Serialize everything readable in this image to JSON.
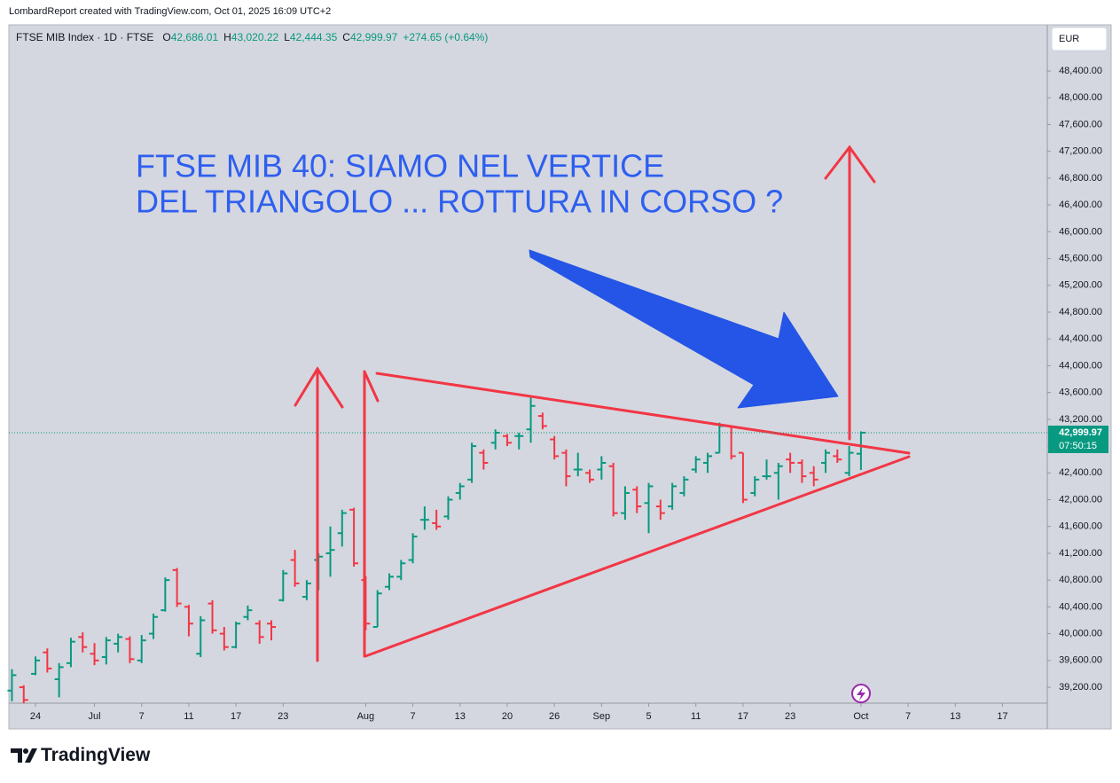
{
  "credit": "LombardReport created with TradingView.com, Oct 01, 2025 16:09 UTC+2",
  "logo": "TradingView",
  "chart_data": {
    "type": "ohlc",
    "title": "FTSE MIB Index · 1D · FTSE",
    "header_values": [
      {
        "label": "O",
        "text": "42,686.01"
      },
      {
        "label": "H",
        "text": "43,020.22"
      },
      {
        "label": "L",
        "text": "42,444.35"
      },
      {
        "label": "C",
        "text": "42,999.97"
      }
    ],
    "change": "+274.65 (+0.64%)",
    "currency": "EUR",
    "last_price_label": "42,999.97",
    "countdown": "07:50:15",
    "annotation": [
      "FTSE MIB 40: SIAMO NEL VERTICE",
      "DEL TRIANGOLO ... ROTTURA IN CORSO ?"
    ],
    "up_color": "#089981",
    "down_color": "#f23645",
    "x": [
      -2,
      -1,
      0,
      1,
      2,
      3,
      4,
      5,
      6,
      7,
      8,
      9,
      10,
      11,
      12,
      13,
      14,
      15,
      16,
      17,
      18,
      19,
      20,
      21,
      22,
      23,
      24,
      25,
      26,
      27,
      28,
      29,
      30,
      31,
      32,
      33,
      34,
      35,
      36,
      37,
      38,
      39,
      40,
      41,
      42,
      43,
      44,
      45,
      46,
      47,
      48,
      49,
      50,
      51,
      52,
      53,
      54,
      55,
      56,
      57,
      58,
      59,
      60,
      61,
      62,
      63,
      64,
      65,
      66,
      67,
      68,
      69,
      70
    ],
    "open": [
      39150,
      39200,
      39400,
      39720,
      39320,
      39560,
      39950,
      39700,
      39650,
      39850,
      39920,
      39600,
      40000,
      40350,
      40950,
      40400,
      39700,
      40450,
      40000,
      39800,
      40250,
      40150,
      40150,
      40500,
      41100,
      40550,
      41100,
      41200,
      41500,
      41850,
      40800,
      40100,
      40700,
      40850,
      41100,
      41700,
      41650,
      41750,
      42100,
      42300,
      42700,
      42850,
      42950,
      42950,
      43050,
      43250,
      42900,
      42700,
      42450,
      42400,
      42450,
      42500,
      41800,
      42150,
      41950,
      41900,
      41900,
      42100,
      42450,
      42550,
      42700,
      43100,
      42700,
      42100,
      42350,
      42400,
      42600,
      42550,
      42400,
      42550,
      42650,
      42400,
      42686.01
    ],
    "high": [
      39470,
      39230,
      39660,
      39780,
      39560,
      39940,
      40020,
      39860,
      39950,
      40000,
      39960,
      39980,
      40300,
      40840,
      40980,
      40430,
      40260,
      40500,
      40100,
      40180,
      40420,
      40200,
      40200,
      40950,
      41250,
      40800,
      41200,
      41600,
      41850,
      41880,
      40860,
      40650,
      40900,
      41100,
      41500,
      41900,
      41850,
      42050,
      42250,
      42850,
      42750,
      43050,
      42980,
      43000,
      43550,
      43300,
      42950,
      42750,
      42700,
      42450,
      42650,
      42550,
      42200,
      42200,
      42250,
      42000,
      42250,
      42350,
      42650,
      42700,
      43150,
      43100,
      42700,
      42350,
      42600,
      42550,
      42700,
      42600,
      42500,
      42750,
      42750,
      42800,
      43020.22
    ],
    "low": [
      38990,
      38960,
      39380,
      39420,
      39050,
      39500,
      39720,
      39530,
      39540,
      39720,
      39560,
      39560,
      39920,
      40330,
      40400,
      39960,
      39650,
      40000,
      39750,
      39780,
      40200,
      39850,
      39900,
      40480,
      40700,
      40500,
      40650,
      40850,
      41300,
      41000,
      40050,
      40100,
      40650,
      40800,
      41050,
      41550,
      41550,
      41700,
      42000,
      42250,
      42450,
      42750,
      42800,
      42750,
      42850,
      43050,
      42600,
      42200,
      42350,
      42250,
      42300,
      41750,
      41700,
      41800,
      41500,
      41700,
      41850,
      42050,
      42400,
      42400,
      42700,
      42600,
      41950,
      42050,
      42300,
      42000,
      42400,
      42250,
      42200,
      42400,
      42550,
      42350,
      42444.35
    ],
    "close": [
      39380,
      39010,
      39600,
      39480,
      39500,
      39880,
      39800,
      39600,
      39900,
      39950,
      39620,
      39900,
      40250,
      40800,
      40450,
      40150,
      40200,
      40050,
      39800,
      40150,
      40350,
      39950,
      40100,
      40900,
      40750,
      40750,
      41150,
      41250,
      41800,
      41050,
      40150,
      40600,
      40850,
      41050,
      41450,
      41700,
      41600,
      42000,
      42200,
      42800,
      42550,
      43000,
      42850,
      42950,
      43400,
      43100,
      42650,
      42350,
      42450,
      42300,
      42550,
      41800,
      42100,
      41900,
      42200,
      41800,
      42200,
      42300,
      42600,
      42650,
      43100,
      42650,
      42000,
      42300,
      42350,
      42500,
      42550,
      42350,
      42300,
      42700,
      42600,
      42700,
      42999.97
    ],
    "xlim": [
      -2.26,
      85.8
    ],
    "xticks": [
      {
        "value": 0,
        "label": "24"
      },
      {
        "value": 5,
        "label": "Jul"
      },
      {
        "value": 9,
        "label": "7"
      },
      {
        "value": 13,
        "label": "11"
      },
      {
        "value": 17,
        "label": "17"
      },
      {
        "value": 21,
        "label": "23"
      },
      {
        "value": 28,
        "label": "Aug"
      },
      {
        "value": 32,
        "label": "7"
      },
      {
        "value": 36,
        "label": "13"
      },
      {
        "value": 40,
        "label": "20"
      },
      {
        "value": 44,
        "label": "26"
      },
      {
        "value": 48,
        "label": "Sep"
      },
      {
        "value": 52,
        "label": "5"
      },
      {
        "value": 56,
        "label": "11"
      },
      {
        "value": 60,
        "label": "17"
      },
      {
        "value": 64,
        "label": "23"
      },
      {
        "value": 70,
        "label": "Oct"
      },
      {
        "value": 74,
        "label": "7"
      },
      {
        "value": 78,
        "label": "13"
      },
      {
        "value": 82,
        "label": "17"
      }
    ],
    "ylim": [
      38962,
      49089
    ],
    "yticks": [
      {
        "value": 39200,
        "label": "39,200.00"
      },
      {
        "value": 39600,
        "label": "39,600.00"
      },
      {
        "value": 40000,
        "label": "40,000.00"
      },
      {
        "value": 40400,
        "label": "40,400.00"
      },
      {
        "value": 40800,
        "label": "40,800.00"
      },
      {
        "value": 41200,
        "label": "41,200.00"
      },
      {
        "value": 41600,
        "label": "41,600.00"
      },
      {
        "value": 42000,
        "label": "42,000.00"
      },
      {
        "value": 42400,
        "label": "42,400.00"
      },
      {
        "value": 42800,
        "label": "42,800.00"
      },
      {
        "value": 43200,
        "label": "43,200.00"
      },
      {
        "value": 43600,
        "label": "43,600.00"
      },
      {
        "value": 44000,
        "label": "44,000.00"
      },
      {
        "value": 44400,
        "label": "44,400.00"
      },
      {
        "value": 44800,
        "label": "44,800.00"
      },
      {
        "value": 45200,
        "label": "45,200.00"
      },
      {
        "value": 45600,
        "label": "45,600.00"
      },
      {
        "value": 46000,
        "label": "46,000.00"
      },
      {
        "value": 46400,
        "label": "46,400.00"
      },
      {
        "value": 46800,
        "label": "46,800.00"
      },
      {
        "value": 47200,
        "label": "47,200.00"
      },
      {
        "value": 47600,
        "label": "47,600.00"
      },
      {
        "value": 48000,
        "label": "48,000.00"
      },
      {
        "value": 48400,
        "label": "48,400.00"
      }
    ]
  }
}
